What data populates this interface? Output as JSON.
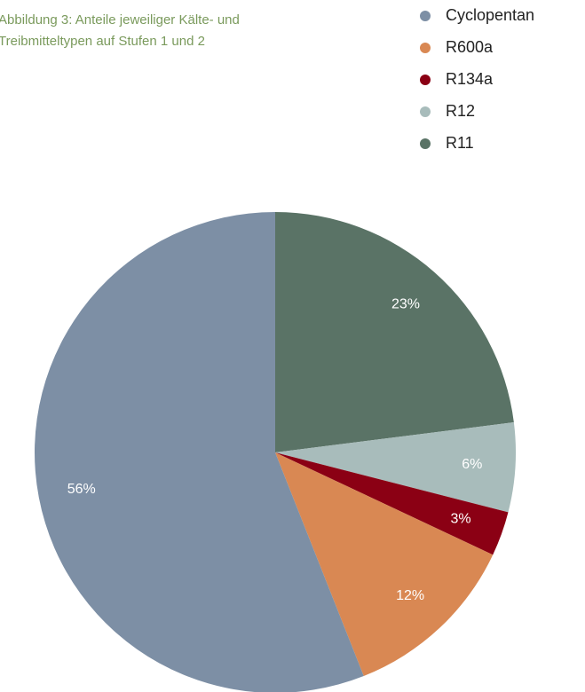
{
  "chart_data": {
    "type": "pie",
    "title_lines": [
      "Abbildung 3: Anteile jeweiliger Kälte- und",
      "Treibmitteltypen auf Stufen 1 und 2"
    ],
    "categories": [
      "Cyclopentan",
      "R600a",
      "R134a",
      "R12",
      "R11"
    ],
    "values": [
      56,
      12,
      3,
      6,
      23
    ],
    "value_labels": [
      "56%",
      "12%",
      "3%",
      "6%",
      "23%"
    ],
    "colors": [
      "#7d8fa5",
      "#d98853",
      "#8b0014",
      "#a8bcbb",
      "#5a7366"
    ],
    "legend": "top-right"
  }
}
